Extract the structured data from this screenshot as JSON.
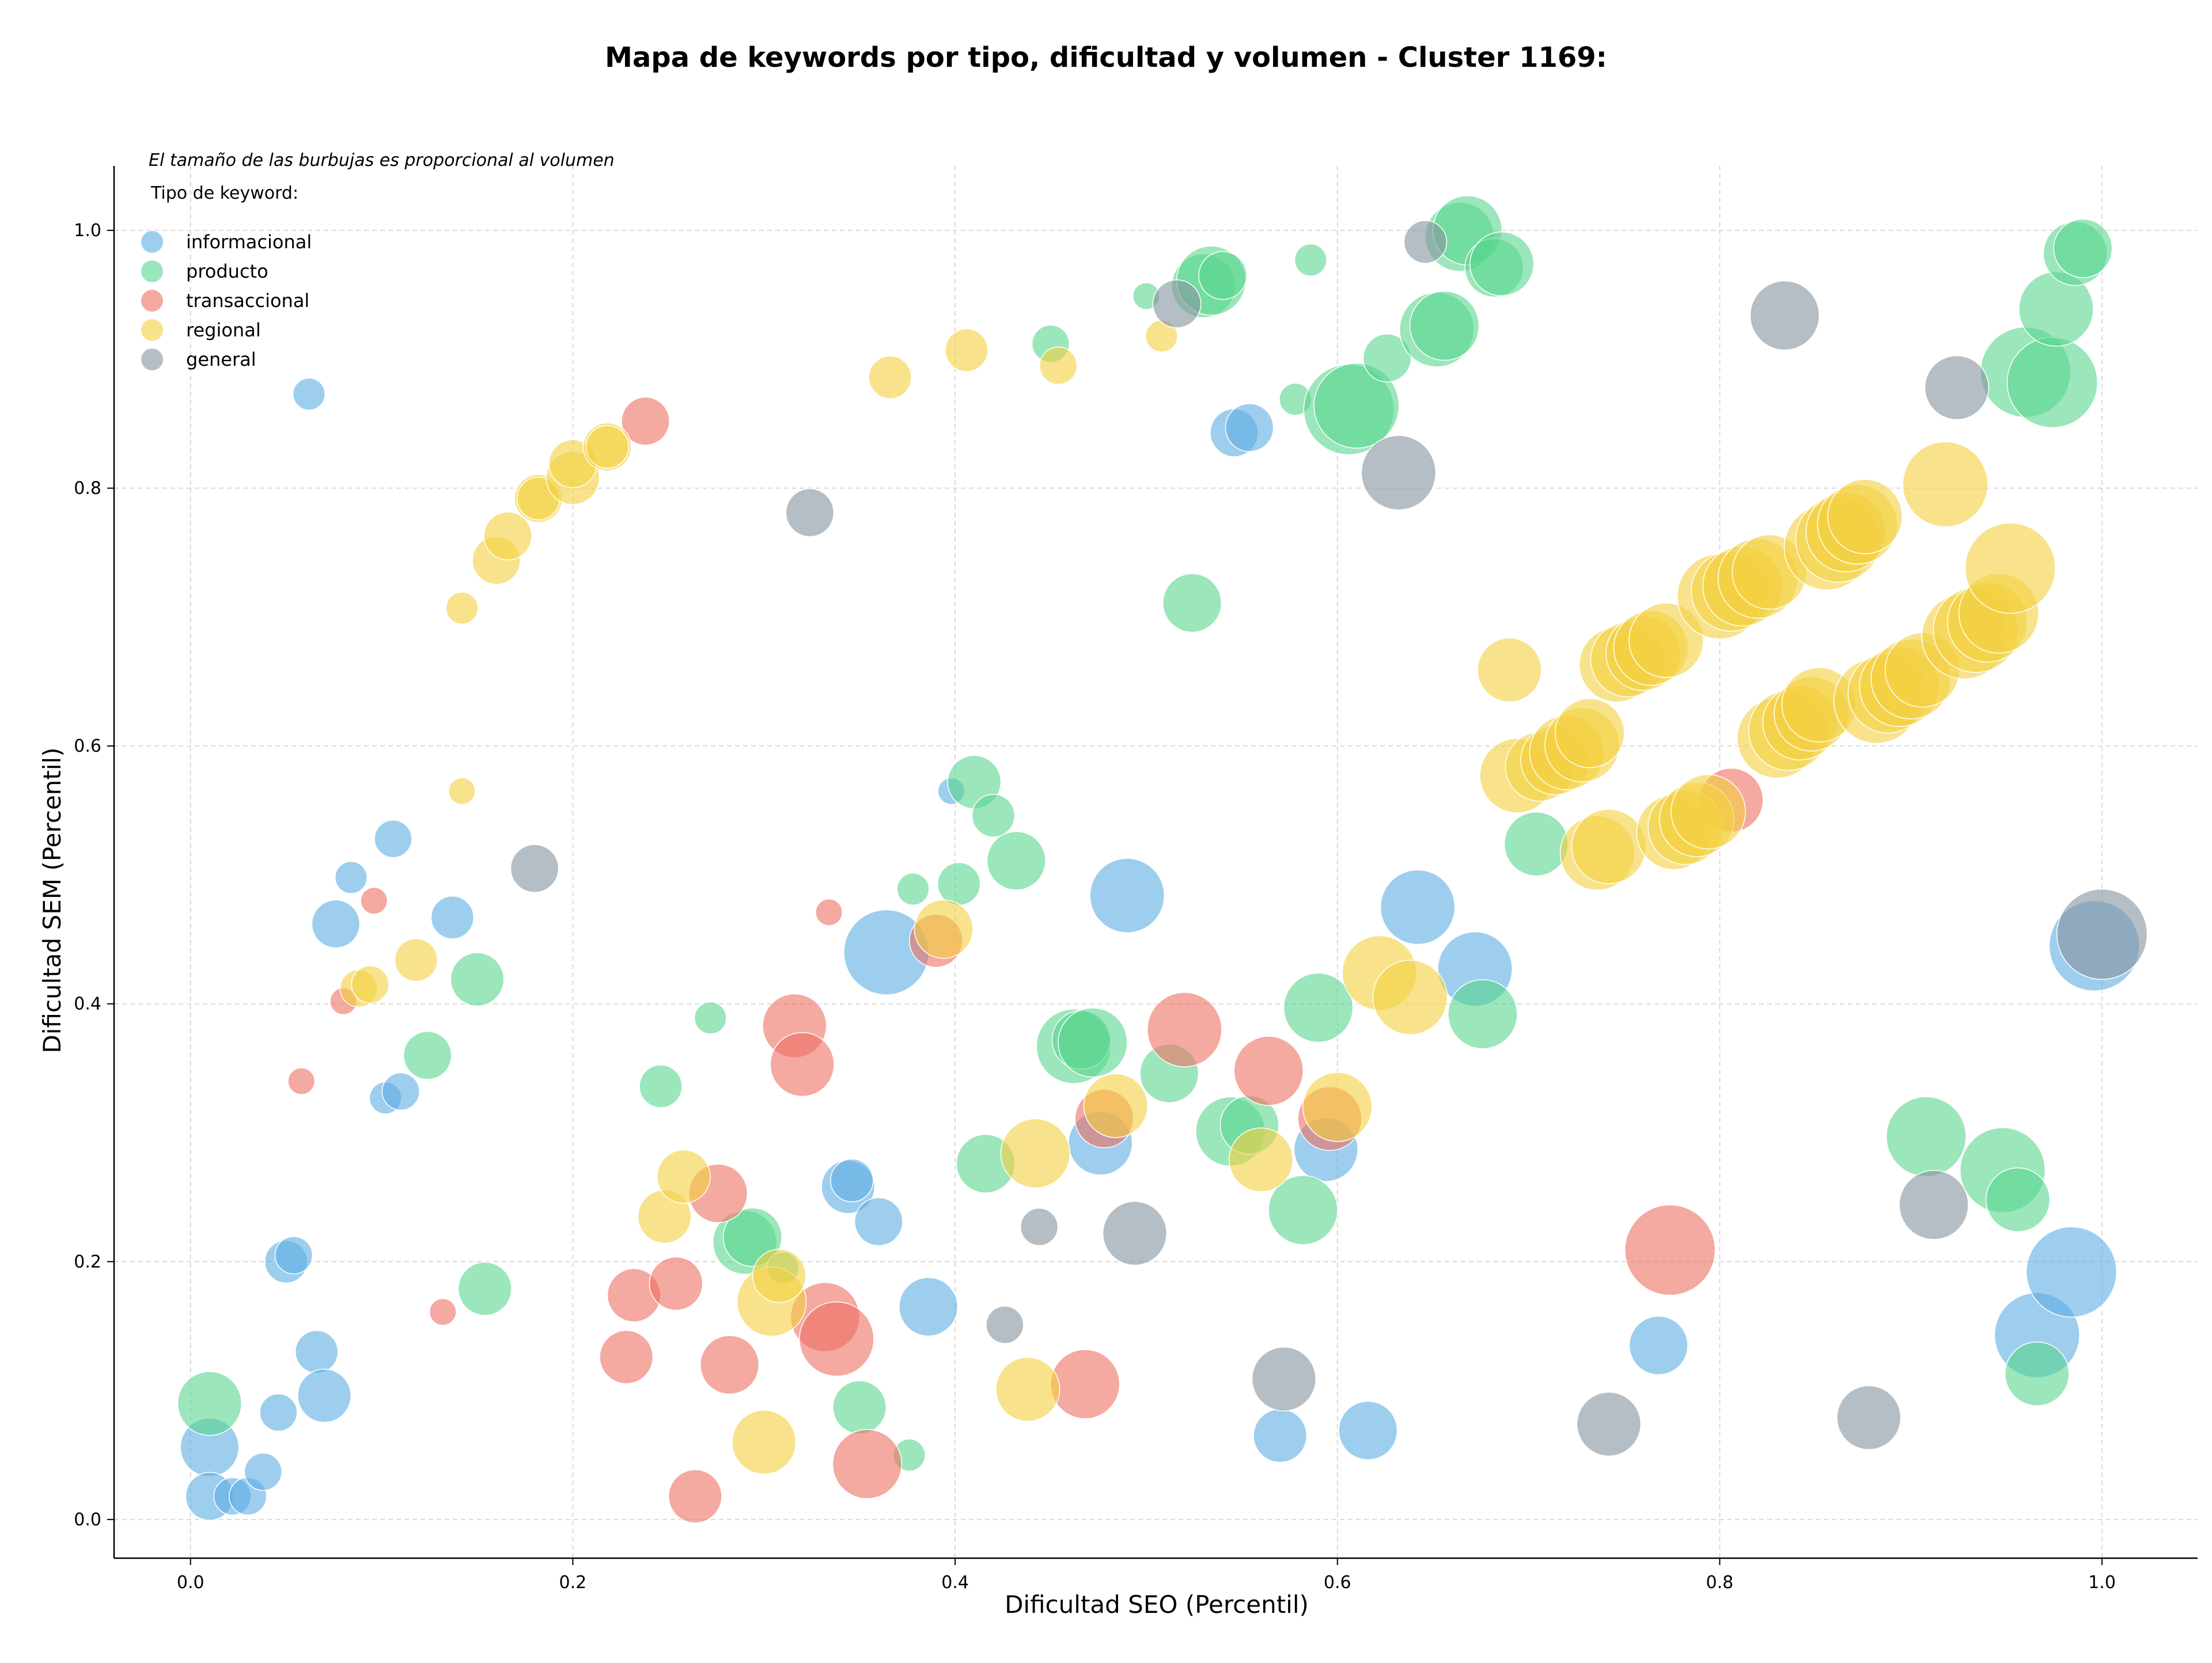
{
  "chart_data": {
    "type": "scatter",
    "title": "Mapa de keywords por tipo, dificultad y volumen - Cluster 1169:",
    "note": "El tamaño de las burbujas es proporcional al volumen",
    "xlabel": "Dificultad SEO (Percentil)",
    "ylabel": "Dificultad SEM (Percentil)",
    "xlim": [
      -0.04,
      1.05
    ],
    "ylim": [
      -0.03,
      1.05
    ],
    "xticks": [
      0.0,
      0.2,
      0.4,
      0.6,
      0.8,
      1.0
    ],
    "xtick_labels": [
      "0.0",
      "0.2",
      "0.4",
      "0.6",
      "0.8",
      "1.0"
    ],
    "yticks": [
      0.0,
      0.2,
      0.4,
      0.6,
      0.8,
      1.0
    ],
    "ytick_labels": [
      "0.0",
      "0.2",
      "0.4",
      "0.6",
      "0.8",
      "1.0"
    ],
    "grid": true,
    "legend": {
      "title": "Tipo de keyword:",
      "placement": "top-left"
    },
    "series": [
      {
        "name": "informacional",
        "color": "#5dade2",
        "points": [
          [
            0.062,
            0.873,
            3
          ],
          [
            0.01,
            0.056,
            8
          ],
          [
            0.01,
            0.018,
            6
          ],
          [
            0.022,
            0.018,
            4
          ],
          [
            0.03,
            0.018,
            4
          ],
          [
            0.038,
            0.037,
            4
          ],
          [
            0.046,
            0.083,
            4
          ],
          [
            0.05,
            0.2,
            5
          ],
          [
            0.054,
            0.205,
            4
          ],
          [
            0.066,
            0.13,
            5
          ],
          [
            0.07,
            0.096,
            7
          ],
          [
            0.076,
            0.462,
            6
          ],
          [
            0.084,
            0.498,
            3
          ],
          [
            0.102,
            0.327,
            3
          ],
          [
            0.106,
            0.528,
            4
          ],
          [
            0.11,
            0.332,
            4
          ],
          [
            0.137,
            0.467,
            5
          ],
          [
            0.344,
            0.258,
            7
          ],
          [
            0.346,
            0.263,
            5
          ],
          [
            0.36,
            0.231,
            6
          ],
          [
            0.364,
            0.44,
            13
          ],
          [
            0.386,
            0.165,
            8
          ],
          [
            0.398,
            0.565,
            2
          ],
          [
            0.476,
            0.292,
            9
          ],
          [
            0.49,
            0.484,
            11
          ],
          [
            0.546,
            0.843,
            6
          ],
          [
            0.554,
            0.847,
            6
          ],
          [
            0.57,
            0.065,
            7
          ],
          [
            0.594,
            0.287,
            9
          ],
          [
            0.616,
            0.069,
            8
          ],
          [
            0.642,
            0.475,
            11
          ],
          [
            0.672,
            0.427,
            11
          ],
          [
            0.768,
            0.135,
            8
          ],
          [
            0.966,
            0.143,
            13
          ],
          [
            0.984,
            0.192,
            14
          ],
          [
            0.996,
            0.445,
            14
          ]
        ]
      },
      {
        "name": "producto",
        "color": "#58d68d",
        "points": [
          [
            0.01,
            0.09,
            9
          ],
          [
            0.124,
            0.36,
            6
          ],
          [
            0.15,
            0.419,
            7
          ],
          [
            0.154,
            0.179,
            7
          ],
          [
            0.246,
            0.336,
            5
          ],
          [
            0.272,
            0.389,
            3
          ],
          [
            0.29,
            0.215,
            9
          ],
          [
            0.294,
            0.219,
            8
          ],
          [
            0.31,
            0.195,
            3
          ],
          [
            0.35,
            0.087,
            7
          ],
          [
            0.376,
            0.05,
            3
          ],
          [
            0.378,
            0.489,
            3
          ],
          [
            0.402,
            0.493,
            5
          ],
          [
            0.41,
            0.572,
            7
          ],
          [
            0.42,
            0.546,
            5
          ],
          [
            0.416,
            0.276,
            8
          ],
          [
            0.432,
            0.511,
            8
          ],
          [
            0.45,
            0.912,
            4
          ],
          [
            0.462,
            0.367,
            11
          ],
          [
            0.466,
            0.372,
            8
          ],
          [
            0.472,
            0.37,
            10
          ],
          [
            0.5,
            0.949,
            2
          ],
          [
            0.512,
            0.346,
            8
          ],
          [
            0.524,
            0.711,
            8
          ],
          [
            0.53,
            0.957,
            9
          ],
          [
            0.534,
            0.961,
            10
          ],
          [
            0.54,
            0.965,
            6
          ],
          [
            0.544,
            0.301,
            10
          ],
          [
            0.554,
            0.306,
            8
          ],
          [
            0.578,
            0.869,
            3
          ],
          [
            0.582,
            0.24,
            10
          ],
          [
            0.586,
            0.977,
            3
          ],
          [
            0.59,
            0.397,
            10
          ],
          [
            0.606,
            0.861,
            14
          ],
          [
            0.61,
            0.864,
            13
          ],
          [
            0.626,
            0.901,
            6
          ],
          [
            0.652,
            0.923,
            11
          ],
          [
            0.656,
            0.926,
            10
          ],
          [
            0.664,
            0.995,
            10
          ],
          [
            0.668,
            1.0,
            10
          ],
          [
            0.682,
            0.971,
            8
          ],
          [
            0.686,
            0.974,
            9
          ],
          [
            0.676,
            0.392,
            10
          ],
          [
            0.704,
            0.524,
            9
          ],
          [
            0.908,
            0.297,
            12
          ],
          [
            0.948,
            0.271,
            13
          ],
          [
            0.956,
            0.248,
            9
          ],
          [
            0.96,
            0.89,
            14
          ],
          [
            0.966,
            0.113,
            9
          ],
          [
            0.974,
            0.882,
            14
          ],
          [
            0.976,
            0.939,
            11
          ],
          [
            0.986,
            0.982,
            9
          ],
          [
            0.99,
            0.986,
            8
          ]
        ]
      },
      {
        "name": "transaccional",
        "color": "#ec7063",
        "points": [
          [
            0.058,
            0.34,
            2
          ],
          [
            0.08,
            0.402,
            2
          ],
          [
            0.096,
            0.48,
            2
          ],
          [
            0.132,
            0.161,
            2
          ],
          [
            0.228,
            0.126,
            7
          ],
          [
            0.232,
            0.174,
            7
          ],
          [
            0.238,
            0.852,
            6
          ],
          [
            0.254,
            0.183,
            7
          ],
          [
            0.264,
            0.018,
            7
          ],
          [
            0.276,
            0.253,
            8
          ],
          [
            0.282,
            0.12,
            8
          ],
          [
            0.316,
            0.383,
            9
          ],
          [
            0.32,
            0.353,
            9
          ],
          [
            0.332,
            0.157,
            10
          ],
          [
            0.334,
            0.471,
            2
          ],
          [
            0.338,
            0.14,
            11
          ],
          [
            0.354,
            0.043,
            10
          ],
          [
            0.39,
            0.449,
            7
          ],
          [
            0.468,
            0.105,
            10
          ],
          [
            0.478,
            0.311,
            8
          ],
          [
            0.52,
            0.38,
            11
          ],
          [
            0.564,
            0.348,
            10
          ],
          [
            0.596,
            0.311,
            9
          ],
          [
            0.774,
            0.209,
            14
          ],
          [
            0.806,
            0.558,
            9
          ]
        ]
      },
      {
        "name": "regional",
        "color": "#f4d03f",
        "points": [
          [
            0.088,
            0.412,
            4
          ],
          [
            0.094,
            0.415,
            4
          ],
          [
            0.118,
            0.434,
            5
          ],
          [
            0.142,
            0.565,
            2
          ],
          [
            0.142,
            0.707,
            3
          ],
          [
            0.16,
            0.744,
            6
          ],
          [
            0.166,
            0.763,
            6
          ],
          [
            0.182,
            0.792,
            6
          ],
          [
            0.182,
            0.792,
            5
          ],
          [
            0.2,
            0.808,
            7
          ],
          [
            0.2,
            0.819,
            6
          ],
          [
            0.218,
            0.832,
            6
          ],
          [
            0.218,
            0.832,
            5
          ],
          [
            0.248,
            0.235,
            7
          ],
          [
            0.258,
            0.266,
            7
          ],
          [
            0.3,
            0.06,
            9
          ],
          [
            0.304,
            0.169,
            10
          ],
          [
            0.308,
            0.189,
            7
          ],
          [
            0.366,
            0.886,
            5
          ],
          [
            0.394,
            0.458,
            8
          ],
          [
            0.406,
            0.907,
            5
          ],
          [
            0.438,
            0.101,
            9
          ],
          [
            0.442,
            0.284,
            10
          ],
          [
            0.454,
            0.895,
            4
          ],
          [
            0.484,
            0.321,
            9
          ],
          [
            0.508,
            0.918,
            3
          ],
          [
            0.56,
            0.279,
            9
          ],
          [
            0.6,
            0.32,
            10
          ],
          [
            0.622,
            0.424,
            11
          ],
          [
            0.638,
            0.405,
            11
          ],
          [
            0.69,
            0.659,
            9
          ],
          [
            0.694,
            0.577,
            11
          ],
          [
            0.706,
            0.584,
            10
          ],
          [
            0.714,
            0.589,
            10
          ],
          [
            0.72,
            0.595,
            11
          ],
          [
            0.728,
            0.601,
            11
          ],
          [
            0.732,
            0.61,
            10
          ],
          [
            0.736,
            0.517,
            11
          ],
          [
            0.742,
            0.522,
            11
          ],
          [
            0.746,
            0.663,
            11
          ],
          [
            0.752,
            0.667,
            11
          ],
          [
            0.76,
            0.672,
            11
          ],
          [
            0.764,
            0.676,
            11
          ],
          [
            0.772,
            0.682,
            11
          ],
          [
            0.776,
            0.533,
            11
          ],
          [
            0.782,
            0.537,
            11
          ],
          [
            0.788,
            0.543,
            11
          ],
          [
            0.794,
            0.549,
            11
          ],
          [
            0.8,
            0.716,
            13
          ],
          [
            0.806,
            0.72,
            12
          ],
          [
            0.812,
            0.724,
            12
          ],
          [
            0.82,
            0.73,
            12
          ],
          [
            0.826,
            0.735,
            11
          ],
          [
            0.83,
            0.606,
            12
          ],
          [
            0.836,
            0.612,
            12
          ],
          [
            0.842,
            0.618,
            11
          ],
          [
            0.848,
            0.625,
            11
          ],
          [
            0.852,
            0.632,
            11
          ],
          [
            0.856,
            0.754,
            13
          ],
          [
            0.862,
            0.76,
            13
          ],
          [
            0.866,
            0.766,
            12
          ],
          [
            0.872,
            0.772,
            12
          ],
          [
            0.876,
            0.778,
            11
          ],
          [
            0.882,
            0.635,
            13
          ],
          [
            0.888,
            0.641,
            12
          ],
          [
            0.894,
            0.646,
            12
          ],
          [
            0.9,
            0.652,
            12
          ],
          [
            0.906,
            0.659,
            11
          ],
          [
            0.918,
            0.803,
            13
          ],
          [
            0.928,
            0.685,
            13
          ],
          [
            0.934,
            0.69,
            13
          ],
          [
            0.94,
            0.696,
            12
          ],
          [
            0.946,
            0.703,
            12
          ],
          [
            0.952,
            0.738,
            14
          ]
        ]
      },
      {
        "name": "general",
        "color": "#85929e",
        "points": [
          [
            0.18,
            0.505,
            6
          ],
          [
            0.324,
            0.781,
            6
          ],
          [
            0.426,
            0.151,
            4
          ],
          [
            0.444,
            0.227,
            4
          ],
          [
            0.494,
            0.222,
            9
          ],
          [
            0.516,
            0.943,
            6
          ],
          [
            0.572,
            0.109,
            9
          ],
          [
            0.632,
            0.812,
            11
          ],
          [
            0.646,
            0.991,
            5
          ],
          [
            0.742,
            0.074,
            9
          ],
          [
            0.834,
            0.934,
            10
          ],
          [
            0.878,
            0.079,
            9
          ],
          [
            0.912,
            0.244,
            10
          ],
          [
            0.924,
            0.878,
            9
          ],
          [
            1.0,
            0.454,
            14
          ]
        ]
      }
    ]
  }
}
